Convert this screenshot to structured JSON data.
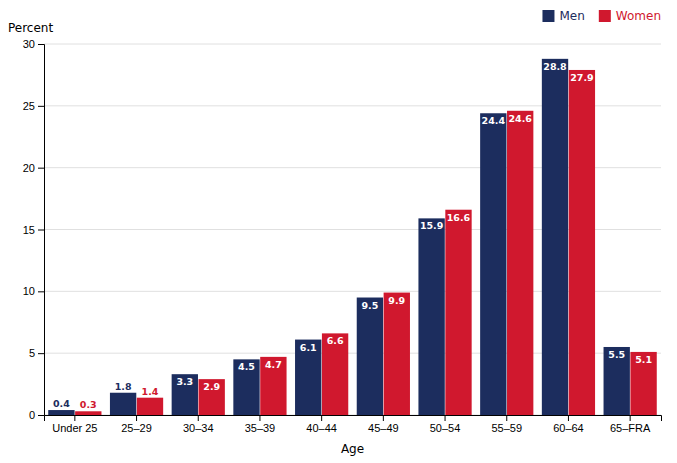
{
  "chart_data": {
    "type": "bar",
    "xlabel": "Age",
    "ylabel": "Percent",
    "categories": [
      "Under 25",
      "25–29",
      "30–34",
      "35–39",
      "40–44",
      "45–49",
      "50–54",
      "55–59",
      "60–64",
      "65–FRA"
    ],
    "series": [
      {
        "name": "Men",
        "color": "#1c2d5e",
        "values": [
          0.4,
          1.8,
          3.3,
          4.5,
          6.1,
          9.5,
          15.9,
          24.4,
          28.8,
          5.5
        ]
      },
      {
        "name": "Women",
        "color": "#d0182e",
        "values": [
          0.3,
          1.4,
          2.9,
          4.7,
          6.6,
          9.9,
          16.6,
          24.6,
          27.9,
          5.1
        ]
      }
    ],
    "ylim": [
      0,
      30
    ],
    "yticks": [
      0,
      5,
      10,
      15,
      20,
      25,
      30
    ],
    "grid": true,
    "data_labels": true,
    "legend": "top-right"
  }
}
